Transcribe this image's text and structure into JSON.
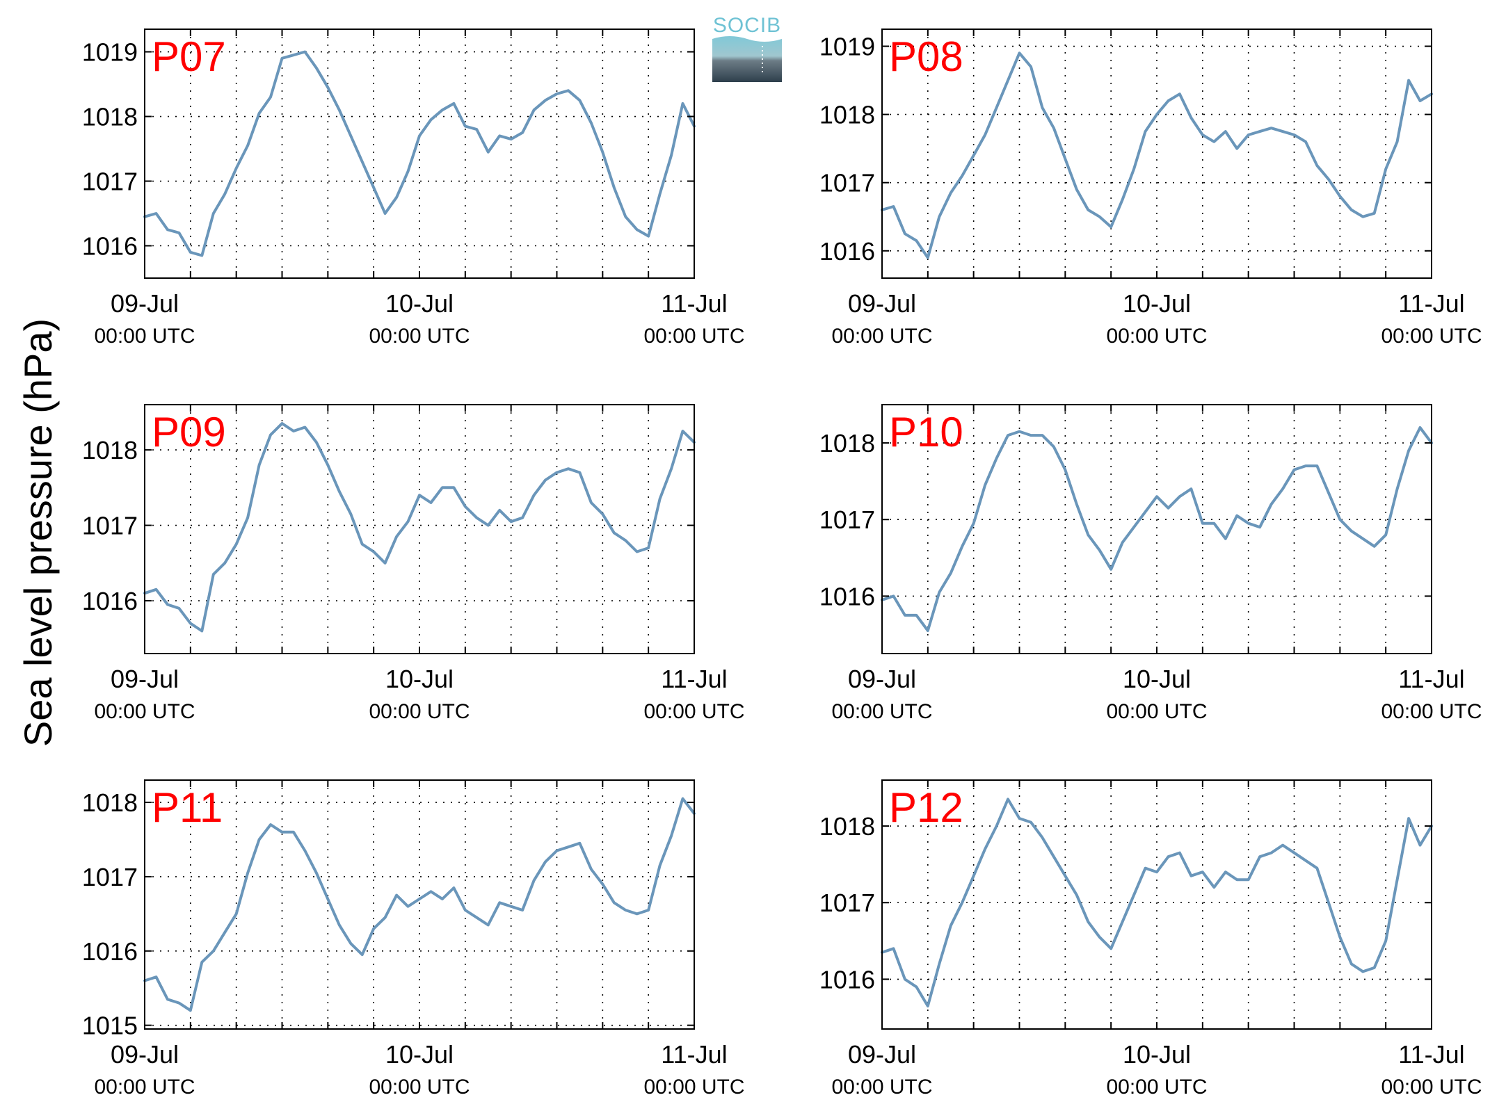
{
  "figure": {
    "ylabel": "Sea level pressure (hPa)",
    "logo_text": "SOCIB"
  },
  "colors": {
    "line": "#6a96ba",
    "station_label": "#ff0000",
    "logo_top": "#7ec8d8",
    "logo_bottom": "#2e3f4c",
    "logo_text": "#6ec2d4"
  },
  "chart_data": [
    {
      "type": "line",
      "station": "P07",
      "ylim": [
        1015.5,
        1019.35
      ],
      "yticks": [
        1016,
        1017,
        1018,
        1019
      ],
      "x_ticks": [
        {
          "date": "09-Jul",
          "time": "00:00 UTC"
        },
        {
          "date": "10-Jul",
          "time": "00:00 UTC"
        },
        {
          "date": "11-Jul",
          "time": "00:00 UTC"
        }
      ],
      "grid": true,
      "x_hours": [
        0,
        1,
        2,
        3,
        4,
        5,
        6,
        7,
        8,
        9,
        10,
        11,
        12,
        13,
        14,
        15,
        16,
        17,
        18,
        19,
        20,
        21,
        22,
        23,
        24,
        25,
        26,
        27,
        28,
        29,
        30,
        31,
        32,
        33,
        34,
        35,
        36,
        37,
        38,
        39,
        40,
        41,
        42,
        43,
        44,
        45,
        46,
        47,
        48
      ],
      "values": [
        1016.45,
        1016.5,
        1016.25,
        1016.2,
        1015.9,
        1015.85,
        1016.5,
        1016.8,
        1017.2,
        1017.55,
        1018.05,
        1018.3,
        1018.9,
        1018.95,
        1019.0,
        1018.75,
        1018.45,
        1018.1,
        1017.7,
        1017.3,
        1016.9,
        1016.5,
        1016.75,
        1017.15,
        1017.7,
        1017.95,
        1018.1,
        1018.2,
        1017.85,
        1017.8,
        1017.45,
        1017.7,
        1017.65,
        1017.75,
        1018.1,
        1018.25,
        1018.35,
        1018.4,
        1018.25,
        1017.9,
        1017.45,
        1016.9,
        1016.45,
        1016.25,
        1016.15,
        1016.8,
        1017.4,
        1018.2,
        1017.85
      ]
    },
    {
      "type": "line",
      "station": "P08",
      "ylim": [
        1015.6,
        1019.25
      ],
      "yticks": [
        1016,
        1017,
        1018,
        1019
      ],
      "x_ticks": [
        {
          "date": "09-Jul",
          "time": "00:00 UTC"
        },
        {
          "date": "10-Jul",
          "time": "00:00 UTC"
        },
        {
          "date": "11-Jul",
          "time": "00:00 UTC"
        }
      ],
      "grid": true,
      "x_hours": [
        0,
        1,
        2,
        3,
        4,
        5,
        6,
        7,
        8,
        9,
        10,
        11,
        12,
        13,
        14,
        15,
        16,
        17,
        18,
        19,
        20,
        21,
        22,
        23,
        24,
        25,
        26,
        27,
        28,
        29,
        30,
        31,
        32,
        33,
        34,
        35,
        36,
        37,
        38,
        39,
        40,
        41,
        42,
        43,
        44,
        45,
        46,
        47,
        48
      ],
      "values": [
        1016.6,
        1016.65,
        1016.25,
        1016.15,
        1015.9,
        1016.5,
        1016.85,
        1017.1,
        1017.4,
        1017.7,
        1018.1,
        1018.5,
        1018.9,
        1018.7,
        1018.1,
        1017.8,
        1017.35,
        1016.9,
        1016.6,
        1016.5,
        1016.35,
        1016.75,
        1017.2,
        1017.75,
        1018.0,
        1018.2,
        1018.3,
        1017.95,
        1017.7,
        1017.6,
        1017.75,
        1017.5,
        1017.7,
        1017.75,
        1017.8,
        1017.75,
        1017.7,
        1017.6,
        1017.25,
        1017.05,
        1016.8,
        1016.6,
        1016.5,
        1016.55,
        1017.2,
        1017.6,
        1018.5,
        1018.2,
        1018.3
      ]
    },
    {
      "type": "line",
      "station": "P09",
      "ylim": [
        1015.3,
        1018.6
      ],
      "yticks": [
        1016,
        1017,
        1018
      ],
      "x_ticks": [
        {
          "date": "09-Jul",
          "time": "00:00 UTC"
        },
        {
          "date": "10-Jul",
          "time": "00:00 UTC"
        },
        {
          "date": "11-Jul",
          "time": "00:00 UTC"
        }
      ],
      "grid": true,
      "x_hours": [
        0,
        1,
        2,
        3,
        4,
        5,
        6,
        7,
        8,
        9,
        10,
        11,
        12,
        13,
        14,
        15,
        16,
        17,
        18,
        19,
        20,
        21,
        22,
        23,
        24,
        25,
        26,
        27,
        28,
        29,
        30,
        31,
        32,
        33,
        34,
        35,
        36,
        37,
        38,
        39,
        40,
        41,
        42,
        43,
        44,
        45,
        46,
        47,
        48
      ],
      "values": [
        1016.1,
        1016.15,
        1015.95,
        1015.9,
        1015.7,
        1015.6,
        1016.35,
        1016.5,
        1016.75,
        1017.1,
        1017.8,
        1018.2,
        1018.35,
        1018.25,
        1018.3,
        1018.1,
        1017.8,
        1017.45,
        1017.15,
        1016.75,
        1016.65,
        1016.5,
        1016.85,
        1017.05,
        1017.4,
        1017.3,
        1017.5,
        1017.5,
        1017.25,
        1017.1,
        1017.0,
        1017.2,
        1017.05,
        1017.1,
        1017.4,
        1017.6,
        1017.7,
        1017.75,
        1017.7,
        1017.3,
        1017.15,
        1016.9,
        1016.8,
        1016.65,
        1016.7,
        1017.35,
        1017.75,
        1018.25,
        1018.1
      ]
    },
    {
      "type": "line",
      "station": "P10",
      "ylim": [
        1015.25,
        1018.5
      ],
      "yticks": [
        1016,
        1017,
        1018
      ],
      "x_ticks": [
        {
          "date": "09-Jul",
          "time": "00:00 UTC"
        },
        {
          "date": "10-Jul",
          "time": "00:00 UTC"
        },
        {
          "date": "11-Jul",
          "time": "00:00 UTC"
        }
      ],
      "grid": true,
      "x_hours": [
        0,
        1,
        2,
        3,
        4,
        5,
        6,
        7,
        8,
        9,
        10,
        11,
        12,
        13,
        14,
        15,
        16,
        17,
        18,
        19,
        20,
        21,
        22,
        23,
        24,
        25,
        26,
        27,
        28,
        29,
        30,
        31,
        32,
        33,
        34,
        35,
        36,
        37,
        38,
        39,
        40,
        41,
        42,
        43,
        44,
        45,
        46,
        47,
        48
      ],
      "values": [
        1015.95,
        1016.0,
        1015.75,
        1015.75,
        1015.55,
        1016.05,
        1016.3,
        1016.65,
        1016.95,
        1017.45,
        1017.8,
        1018.1,
        1018.15,
        1018.1,
        1018.1,
        1017.95,
        1017.65,
        1017.2,
        1016.8,
        1016.6,
        1016.35,
        1016.7,
        1016.9,
        1017.1,
        1017.3,
        1017.15,
        1017.3,
        1017.4,
        1016.95,
        1016.95,
        1016.75,
        1017.05,
        1016.95,
        1016.9,
        1017.2,
        1017.4,
        1017.65,
        1017.7,
        1017.7,
        1017.35,
        1017.0,
        1016.85,
        1016.75,
        1016.65,
        1016.8,
        1017.4,
        1017.9,
        1018.2,
        1018.0
      ]
    },
    {
      "type": "line",
      "station": "P11",
      "ylim": [
        1014.95,
        1018.3
      ],
      "yticks": [
        1015,
        1016,
        1017,
        1018
      ],
      "x_ticks": [
        {
          "date": "09-Jul",
          "time": "00:00 UTC"
        },
        {
          "date": "10-Jul",
          "time": "00:00 UTC"
        },
        {
          "date": "11-Jul",
          "time": "00:00 UTC"
        }
      ],
      "grid": true,
      "x_hours": [
        0,
        1,
        2,
        3,
        4,
        5,
        6,
        7,
        8,
        9,
        10,
        11,
        12,
        13,
        14,
        15,
        16,
        17,
        18,
        19,
        20,
        21,
        22,
        23,
        24,
        25,
        26,
        27,
        28,
        29,
        30,
        31,
        32,
        33,
        34,
        35,
        36,
        37,
        38,
        39,
        40,
        41,
        42,
        43,
        44,
        45,
        46,
        47,
        48
      ],
      "values": [
        1015.6,
        1015.65,
        1015.35,
        1015.3,
        1015.2,
        1015.85,
        1016.0,
        1016.25,
        1016.5,
        1017.05,
        1017.5,
        1017.7,
        1017.6,
        1017.6,
        1017.35,
        1017.05,
        1016.7,
        1016.35,
        1016.1,
        1015.95,
        1016.3,
        1016.45,
        1016.75,
        1016.6,
        1016.7,
        1016.8,
        1016.7,
        1016.85,
        1016.55,
        1016.45,
        1016.35,
        1016.65,
        1016.6,
        1016.55,
        1016.95,
        1017.2,
        1017.35,
        1017.4,
        1017.45,
        1017.1,
        1016.9,
        1016.65,
        1016.55,
        1016.5,
        1016.55,
        1017.15,
        1017.55,
        1018.05,
        1017.85
      ]
    },
    {
      "type": "line",
      "station": "P12",
      "ylim": [
        1015.35,
        1018.6
      ],
      "yticks": [
        1016,
        1017,
        1018
      ],
      "x_ticks": [
        {
          "date": "09-Jul",
          "time": "00:00 UTC"
        },
        {
          "date": "10-Jul",
          "time": "00:00 UTC"
        },
        {
          "date": "11-Jul",
          "time": "00:00 UTC"
        }
      ],
      "grid": true,
      "x_hours": [
        0,
        1,
        2,
        3,
        4,
        5,
        6,
        7,
        8,
        9,
        10,
        11,
        12,
        13,
        14,
        15,
        16,
        17,
        18,
        19,
        20,
        21,
        22,
        23,
        24,
        25,
        26,
        27,
        28,
        29,
        30,
        31,
        32,
        33,
        34,
        35,
        36,
        37,
        38,
        39,
        40,
        41,
        42,
        43,
        44,
        45,
        46,
        47,
        48
      ],
      "values": [
        1016.35,
        1016.4,
        1016.0,
        1015.9,
        1015.65,
        1016.2,
        1016.7,
        1017.0,
        1017.35,
        1017.7,
        1018.0,
        1018.35,
        1018.1,
        1018.05,
        1017.85,
        1017.6,
        1017.35,
        1017.1,
        1016.75,
        1016.55,
        1016.4,
        1016.75,
        1017.1,
        1017.45,
        1017.4,
        1017.6,
        1017.65,
        1017.35,
        1017.4,
        1017.2,
        1017.4,
        1017.3,
        1017.3,
        1017.6,
        1017.65,
        1017.75,
        1017.65,
        1017.55,
        1017.45,
        1017.0,
        1016.55,
        1016.2,
        1016.1,
        1016.15,
        1016.5,
        1017.3,
        1018.1,
        1017.75,
        1018.0
      ]
    }
  ]
}
